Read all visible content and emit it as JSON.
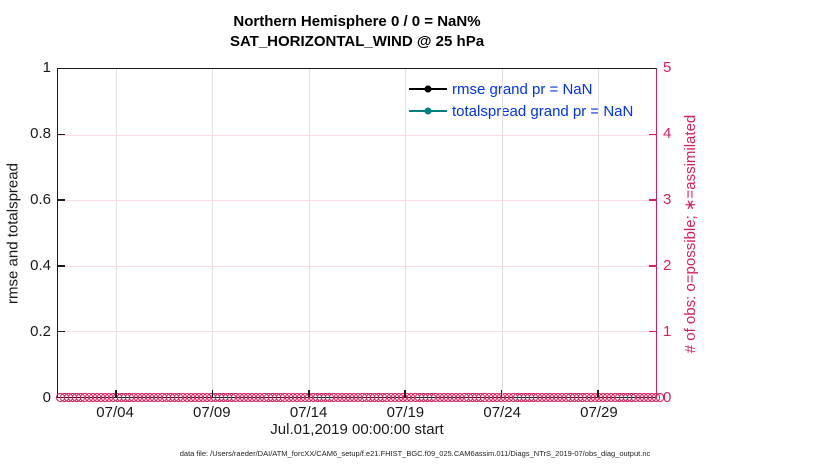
{
  "figure": {
    "title_line1": "Northern Hemisphere 0 / 0 = NaN%",
    "title_line2": "SAT_HORIZONTAL_WIND @ 25 hPa",
    "caption": "data file: /Users/raeder/DAI/ATM_forcXX/CAM6_setup/f.e21.FHIST_BGC.f09_025.CAM6assim.011/Diags_NTrS_2019-07/obs_diag_output.nc"
  },
  "chart_data": {
    "type": "line",
    "title": "Northern Hemisphere 0 / 0 = NaN% — SAT_HORIZONTAL_WIND @ 25 hPa",
    "xlabel": "Jul.01,2019 00:00:00 start",
    "ylabel_left": "rmse and totalspread",
    "ylabel_right": "# of obs: o=possible; ∗=assimilated",
    "x_range_days": 31,
    "x_ticks": [
      {
        "label": "07/04",
        "day": 3
      },
      {
        "label": "07/09",
        "day": 8
      },
      {
        "label": "07/14",
        "day": 13
      },
      {
        "label": "07/19",
        "day": 18
      },
      {
        "label": "07/24",
        "day": 23
      },
      {
        "label": "07/29",
        "day": 28
      }
    ],
    "ylim_left": [
      0,
      1
    ],
    "y_ticks_left": [
      "0",
      "0.2",
      "0.4",
      "0.6",
      "0.8",
      "1"
    ],
    "ylim_right": [
      0,
      5
    ],
    "y_ticks_right": [
      "0",
      "1",
      "2",
      "3",
      "4",
      "5"
    ],
    "grid": true,
    "legend_position": "upper-right-inside",
    "series": [
      {
        "name": "rmse grand pr = NaN",
        "color": "#000000",
        "values": "NaN (no curve plotted)"
      },
      {
        "name": "totalspread grand pr = NaN",
        "color": "#008080",
        "values": "NaN (no curve plotted)"
      },
      {
        "name": "# of obs possible (o) and assimilated (∗)",
        "color": "#d81e5e",
        "constant_value": 0,
        "x_start_day": 0,
        "x_end_day": 31,
        "note": "dense circle markers at y=0 across entire x-axis"
      }
    ],
    "colors": {
      "obs_axis": "#d81e5e",
      "legend_text": "#0033ee",
      "grid_vertical": "#e0e0e0",
      "grid_horizontal": "#f8dde7",
      "axis": "#1a1a1a"
    }
  },
  "legend": {
    "entries": [
      {
        "label": "rmse grand pr = NaN",
        "color": "#000000"
      },
      {
        "label": "totalspread grand pr = NaN",
        "color": "#008080"
      }
    ]
  }
}
